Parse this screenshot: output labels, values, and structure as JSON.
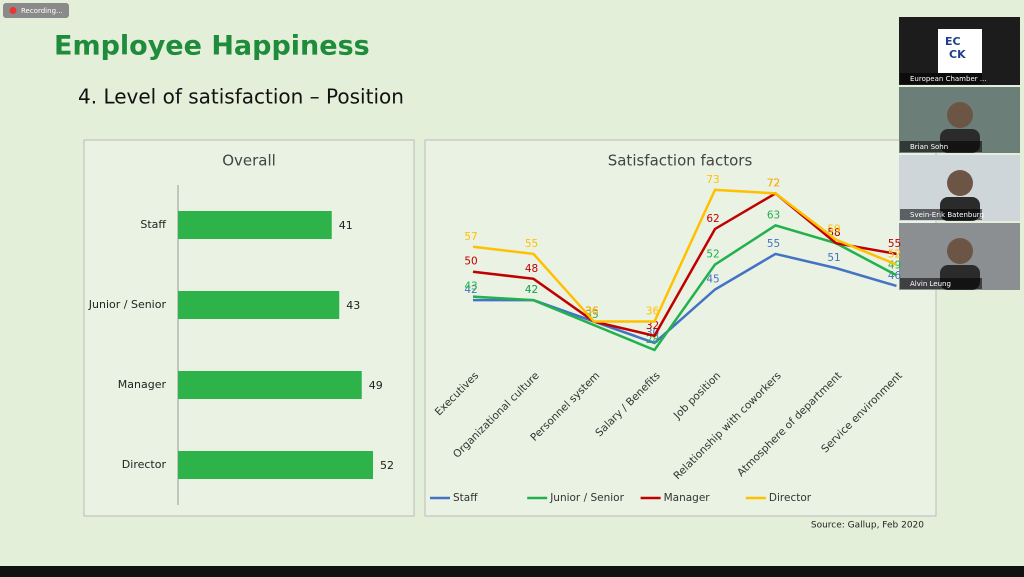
{
  "recording": "Recording...",
  "slide": {
    "title": "Employee Happiness",
    "subtitle": "4. Level of satisfaction – Position",
    "source": "Source: Gallup,  Feb 2020"
  },
  "chart_data": [
    {
      "type": "hbar",
      "title": "Overall",
      "categories": [
        "Staff",
        "Junior / Senior",
        "Manager",
        "Director"
      ],
      "values": [
        41,
        43,
        49,
        52
      ],
      "color": "#2db34a"
    },
    {
      "type": "line",
      "title": "Satisfaction factors",
      "categories": [
        "Executives",
        "Organizational culture",
        "Personnel system",
        "Salary / Benefits",
        "Job position",
        "Relationship with coworkers",
        "Atmosphere of department",
        "Service environment"
      ],
      "series": [
        {
          "name": "Staff",
          "color": "#4472c4",
          "values": [
            42,
            42,
            36,
            30,
            45,
            55,
            51,
            46
          ]
        },
        {
          "name": "Junior / Senior",
          "color": "#22b14c",
          "values": [
            43,
            42,
            35,
            28,
            52,
            63,
            58,
            49
          ]
        },
        {
          "name": "Manager",
          "color": "#c00000",
          "values": [
            50,
            48,
            36,
            32,
            62,
            72,
            58,
            55
          ]
        },
        {
          "name": "Director",
          "color": "#ffc000",
          "values": [
            57,
            55,
            36,
            36,
            73,
            72,
            59,
            52
          ]
        }
      ],
      "legend": "bottom"
    }
  ],
  "participants": [
    {
      "name": "European Chamber ...",
      "logo": [
        "EC",
        "CK"
      ]
    },
    {
      "name": "Brian Sohn"
    },
    {
      "name": "Svein-Erik Batenburg"
    },
    {
      "name": "Alvin Leung"
    }
  ]
}
